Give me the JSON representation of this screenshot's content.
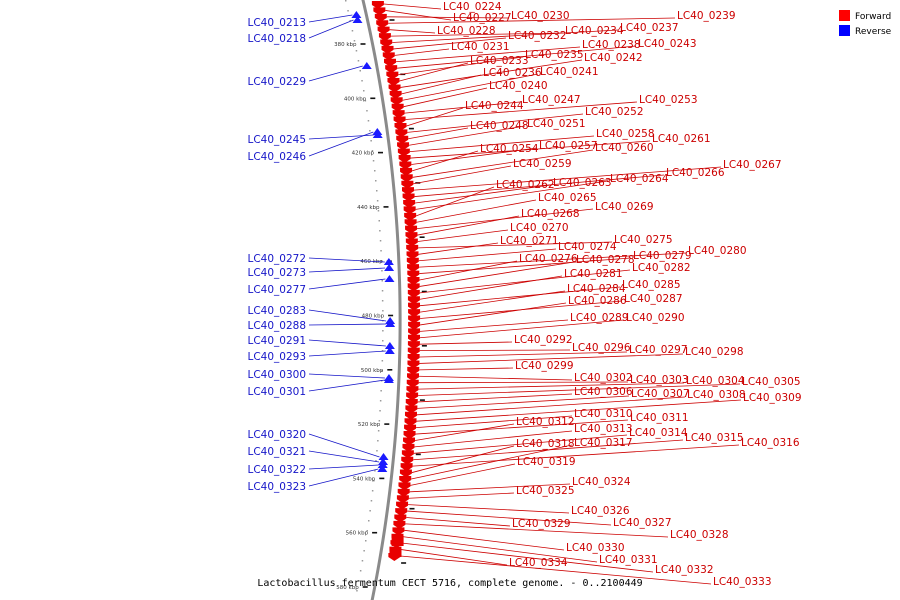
{
  "caption": "Lactobacillus fermentum CECT 5716, complete genome. - 0..2100449",
  "legend": [
    {
      "label": "Forward",
      "color": "#ff0000"
    },
    {
      "label": "Reverse",
      "color": "#0000ff"
    }
  ],
  "ticks": [
    "380 kbp",
    "400 kbp",
    "420 kbp",
    "440 kbp",
    "460 kbp",
    "480 kbp",
    "500 kbp",
    "520 kbp",
    "540 kbp",
    "560 kbp",
    "580 kbp"
  ],
  "reverse_genes": [
    "LC40_0213",
    "LC40_0218",
    "LC40_0229",
    "LC40_0245",
    "LC40_0246",
    "LC40_0272",
    "LC40_0273",
    "LC40_0277",
    "LC40_0283",
    "LC40_0288",
    "LC40_0291",
    "LC40_0293",
    "LC40_0300",
    "LC40_0301",
    "LC40_0320",
    "LC40_0321",
    "LC40_0322",
    "LC40_0323"
  ],
  "forward_genes": [
    "LC40_0224",
    "LC40_0227",
    "LC40_0230",
    "LC40_0239",
    "LC40_0228",
    "LC40_0234",
    "LC40_0237",
    "LC40_0232",
    "LC40_0231",
    "LC40_0238",
    "LC40_0243",
    "LC40_0235",
    "LC40_0233",
    "LC40_0242",
    "LC40_0236",
    "LC40_0241",
    "LC40_0240",
    "LC40_0247",
    "LC40_0253",
    "LC40_0244",
    "LC40_0252",
    "LC40_0248",
    "LC40_0251",
    "LC40_0258",
    "LC40_0261",
    "LC40_0257",
    "LC40_0254",
    "LC40_0260",
    "LC40_0259",
    "LC40_0267",
    "LC40_0266",
    "LC40_0263",
    "LC40_0264",
    "LC40_0262",
    "LC40_0265",
    "LC40_0269",
    "LC40_0268",
    "LC40_0270",
    "LC40_0275",
    "LC40_0271",
    "LC40_0274",
    "LC40_0280",
    "LC40_0279",
    "LC40_0276",
    "LC40_0278",
    "LC40_0282",
    "LC40_0281",
    "LC40_0285",
    "LC40_0284",
    "LC40_0287",
    "LC40_0286",
    "LC40_0289",
    "LC40_0290",
    "LC40_0292",
    "LC40_0296",
    "LC40_0297",
    "LC40_0298",
    "LC40_0299",
    "LC40_0302",
    "LC40_0303",
    "LC40_0304",
    "LC40_0305",
    "LC40_0306",
    "LC40_0307",
    "LC40_0308",
    "LC40_0309",
    "LC40_0310",
    "LC40_0311",
    "LC40_0312",
    "LC40_0313",
    "LC40_0314",
    "LC40_0315",
    "LC40_0316",
    "LC40_0318",
    "LC40_0317",
    "LC40_0319",
    "LC40_0324",
    "LC40_0325",
    "LC40_0326",
    "LC40_0327",
    "LC40_0329",
    "LC40_0328",
    "LC40_0330",
    "LC40_0331",
    "LC40_0332",
    "LC40_0334",
    "LC40_0333"
  ]
}
